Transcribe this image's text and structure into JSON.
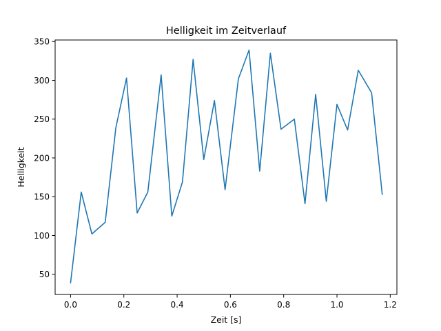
{
  "chart_data": {
    "type": "line",
    "title": "Helligkeit im Zeitverlauf",
    "xlabel": "Zeit [s]",
    "ylabel": "Helligkeit",
    "xlim": [
      -0.058,
      1.225
    ],
    "ylim": [
      24,
      352
    ],
    "xticks": [
      0.0,
      0.2,
      0.4,
      0.6,
      0.8,
      1.0,
      1.2
    ],
    "xtick_labels": [
      "0.0",
      "0.2",
      "0.4",
      "0.6",
      "0.8",
      "1.0",
      "1.2"
    ],
    "yticks": [
      50,
      100,
      150,
      200,
      250,
      300,
      350
    ],
    "ytick_labels": [
      "50",
      "100",
      "150",
      "200",
      "250",
      "300",
      "350"
    ],
    "grid": false,
    "series": [
      {
        "name": "Helligkeit",
        "color": "#1f77b4",
        "x": [
          0.0,
          0.04,
          0.08,
          0.13,
          0.17,
          0.21,
          0.25,
          0.29,
          0.34,
          0.38,
          0.42,
          0.46,
          0.5,
          0.54,
          0.58,
          0.63,
          0.67,
          0.71,
          0.75,
          0.79,
          0.84,
          0.88,
          0.92,
          0.96,
          1.0,
          1.04,
          1.08,
          1.13,
          1.17
        ],
        "y": [
          39,
          156,
          102,
          117,
          239,
          303,
          129,
          156,
          307,
          125,
          169,
          327,
          198,
          274,
          159,
          302,
          339,
          183,
          335,
          237,
          250,
          141,
          282,
          144,
          269,
          236,
          313,
          284,
          153
        ]
      }
    ]
  }
}
